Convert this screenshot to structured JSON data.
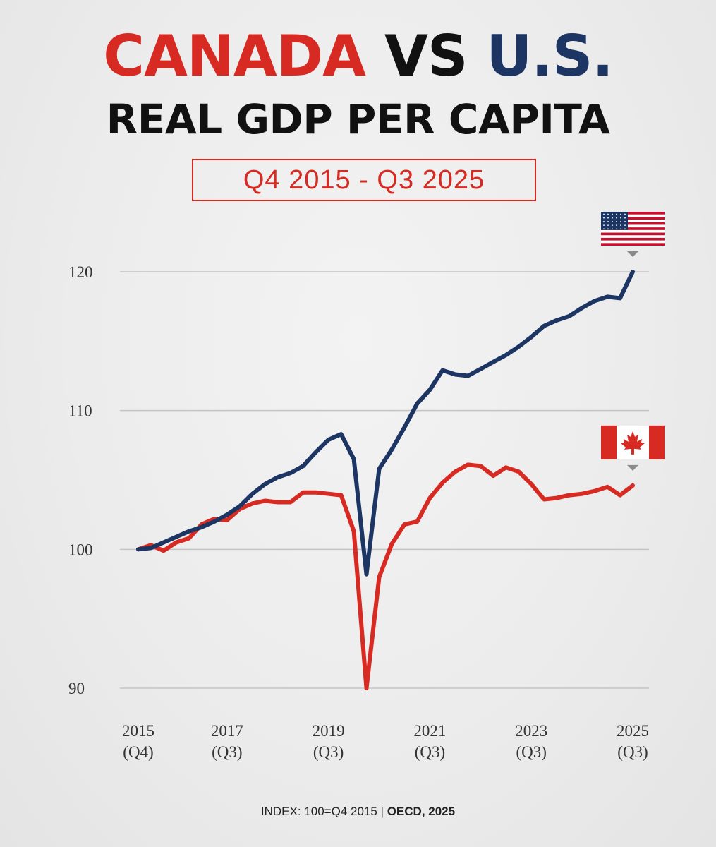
{
  "header": {
    "title_canada": "CANADA",
    "title_vs": "VS",
    "title_us": "U.S.",
    "subtitle": "REAL GDP PER CAPITA",
    "date_range": "Q4 2015 - Q3 2025"
  },
  "footer": {
    "index_note": "INDEX: 100=Q4 2015",
    "separator": "|",
    "source": "OECD, 2025"
  },
  "colors": {
    "canada": "#d72a22",
    "us": "#1d3563",
    "grid": "#c4c4c4"
  },
  "chart_data": {
    "type": "line",
    "title": "CANADA VS U.S. REAL GDP PER CAPITA",
    "xlabel": "",
    "ylabel": "",
    "ylim": [
      90,
      120
    ],
    "yticks": [
      90,
      100,
      110,
      120
    ],
    "x_tick_labels": [
      {
        "year": "2015",
        "quarter": "(Q4)",
        "q": 0
      },
      {
        "year": "2017",
        "quarter": "(Q3)",
        "q": 7
      },
      {
        "year": "2019",
        "quarter": "(Q3)",
        "q": 15
      },
      {
        "year": "2021",
        "quarter": "(Q3)",
        "q": 23
      },
      {
        "year": "2023",
        "quarter": "(Q3)",
        "q": 31
      },
      {
        "year": "2025",
        "quarter": "(Q3)",
        "q": 39
      }
    ],
    "series": [
      {
        "name": "U.S.",
        "icon": "us-flag-icon",
        "values": [
          100.0,
          100.1,
          100.5,
          100.9,
          101.3,
          101.6,
          102.0,
          102.5,
          103.1,
          104.0,
          104.7,
          105.2,
          105.5,
          106.0,
          107.0,
          107.9,
          108.3,
          106.5,
          98.2,
          105.8,
          107.2,
          108.8,
          110.5,
          111.5,
          112.9,
          112.6,
          112.5,
          113.0,
          113.5,
          114.0,
          114.6,
          115.3,
          116.1,
          116.5,
          116.8,
          117.4,
          117.9,
          118.2,
          118.1,
          120.0
        ]
      },
      {
        "name": "Canada",
        "icon": "canada-flag-icon",
        "values": [
          100.0,
          100.3,
          99.9,
          100.5,
          100.8,
          101.8,
          102.2,
          102.1,
          102.9,
          103.3,
          103.5,
          103.4,
          103.4,
          104.1,
          104.1,
          104.0,
          103.9,
          101.3,
          90.0,
          98.0,
          100.4,
          101.8,
          102.0,
          103.7,
          104.8,
          105.6,
          106.1,
          106.0,
          105.3,
          105.9,
          105.6,
          104.7,
          103.6,
          103.7,
          103.9,
          104.0,
          104.2,
          104.5,
          103.9,
          104.6
        ]
      }
    ]
  }
}
